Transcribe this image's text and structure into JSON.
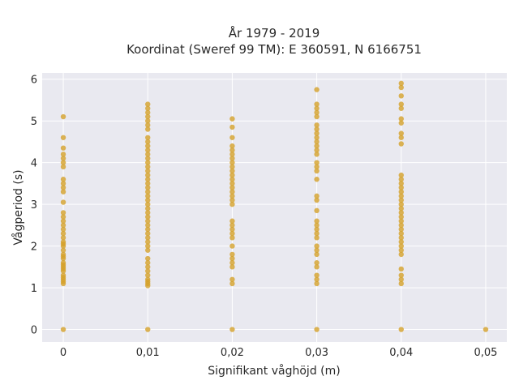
{
  "chart_data": {
    "type": "scatter",
    "title_line1": "År 1979 - 2019",
    "title_line2": "Koordinat (Sweref 99 TM): E 360591, N 6166751",
    "xlabel": "Signifikant våghöjd (m)",
    "ylabel": "Vågperiod (s)",
    "xlim": [
      -0.0025,
      0.0525
    ],
    "ylim": [
      -0.3,
      6.15
    ],
    "xticks": [
      0,
      0.01,
      0.02,
      0.03,
      0.04,
      0.05
    ],
    "xtick_labels": [
      "0",
      "0,01",
      "0,02",
      "0,03",
      "0,04",
      "0,05"
    ],
    "yticks": [
      0,
      1,
      2,
      3,
      4,
      5,
      6
    ],
    "ytick_labels": [
      "0",
      "1",
      "2",
      "3",
      "4",
      "5",
      "6"
    ],
    "grid": true,
    "background": "#e9e9f0",
    "point_color": "#d4a12a",
    "series": [
      {
        "points": [
          [
            0,
            0
          ],
          [
            0,
            1.1
          ],
          [
            0,
            1.15
          ],
          [
            0,
            1.2
          ],
          [
            0,
            1.25
          ],
          [
            0,
            1.3
          ],
          [
            0,
            1.4
          ],
          [
            0,
            1.45
          ],
          [
            0,
            1.5
          ],
          [
            0,
            1.55
          ],
          [
            0,
            1.6
          ],
          [
            0,
            1.7
          ],
          [
            0,
            1.75
          ],
          [
            0,
            1.8
          ],
          [
            0,
            1.9
          ],
          [
            0,
            2.0
          ],
          [
            0,
            2.05
          ],
          [
            0,
            2.1
          ],
          [
            0,
            2.2
          ],
          [
            0,
            2.3
          ],
          [
            0,
            2.4
          ],
          [
            0,
            2.5
          ],
          [
            0,
            2.6
          ],
          [
            0,
            2.7
          ],
          [
            0,
            2.8
          ],
          [
            0,
            3.05
          ],
          [
            0,
            3.3
          ],
          [
            0,
            3.4
          ],
          [
            0,
            3.5
          ],
          [
            0,
            3.6
          ],
          [
            0,
            3.9
          ],
          [
            0,
            4.0
          ],
          [
            0,
            4.1
          ],
          [
            0,
            4.2
          ],
          [
            0,
            4.35
          ],
          [
            0,
            4.6
          ],
          [
            0,
            5.1
          ],
          [
            0.01,
            0
          ],
          [
            0.01,
            1.05
          ],
          [
            0.01,
            1.1
          ],
          [
            0.01,
            1.15
          ],
          [
            0.01,
            1.2
          ],
          [
            0.01,
            1.3
          ],
          [
            0.01,
            1.4
          ],
          [
            0.01,
            1.5
          ],
          [
            0.01,
            1.6
          ],
          [
            0.01,
            1.7
          ],
          [
            0.01,
            1.9
          ],
          [
            0.01,
            2.0
          ],
          [
            0.01,
            2.1
          ],
          [
            0.01,
            2.2
          ],
          [
            0.01,
            2.3
          ],
          [
            0.01,
            2.4
          ],
          [
            0.01,
            2.5
          ],
          [
            0.01,
            2.6
          ],
          [
            0.01,
            2.7
          ],
          [
            0.01,
            2.8
          ],
          [
            0.01,
            2.9
          ],
          [
            0.01,
            3.0
          ],
          [
            0.01,
            3.1
          ],
          [
            0.01,
            3.2
          ],
          [
            0.01,
            3.3
          ],
          [
            0.01,
            3.4
          ],
          [
            0.01,
            3.5
          ],
          [
            0.01,
            3.6
          ],
          [
            0.01,
            3.7
          ],
          [
            0.01,
            3.8
          ],
          [
            0.01,
            3.9
          ],
          [
            0.01,
            4.0
          ],
          [
            0.01,
            4.1
          ],
          [
            0.01,
            4.2
          ],
          [
            0.01,
            4.3
          ],
          [
            0.01,
            4.4
          ],
          [
            0.01,
            4.5
          ],
          [
            0.01,
            4.6
          ],
          [
            0.01,
            4.8
          ],
          [
            0.01,
            4.9
          ],
          [
            0.01,
            5.0
          ],
          [
            0.01,
            5.1
          ],
          [
            0.01,
            5.2
          ],
          [
            0.01,
            5.3
          ],
          [
            0.01,
            5.4
          ],
          [
            0.02,
            0
          ],
          [
            0.02,
            1.1
          ],
          [
            0.02,
            1.2
          ],
          [
            0.02,
            1.5
          ],
          [
            0.02,
            1.6
          ],
          [
            0.02,
            1.7
          ],
          [
            0.02,
            1.8
          ],
          [
            0.02,
            2.0
          ],
          [
            0.02,
            2.2
          ],
          [
            0.02,
            2.3
          ],
          [
            0.02,
            2.4
          ],
          [
            0.02,
            2.5
          ],
          [
            0.02,
            2.6
          ],
          [
            0.02,
            3.0
          ],
          [
            0.02,
            3.1
          ],
          [
            0.02,
            3.2
          ],
          [
            0.02,
            3.3
          ],
          [
            0.02,
            3.4
          ],
          [
            0.02,
            3.5
          ],
          [
            0.02,
            3.6
          ],
          [
            0.02,
            3.7
          ],
          [
            0.02,
            3.8
          ],
          [
            0.02,
            3.9
          ],
          [
            0.02,
            4.0
          ],
          [
            0.02,
            4.1
          ],
          [
            0.02,
            4.2
          ],
          [
            0.02,
            4.3
          ],
          [
            0.02,
            4.4
          ],
          [
            0.02,
            4.6
          ],
          [
            0.02,
            4.85
          ],
          [
            0.02,
            5.05
          ],
          [
            0.03,
            0
          ],
          [
            0.03,
            1.1
          ],
          [
            0.03,
            1.2
          ],
          [
            0.03,
            1.3
          ],
          [
            0.03,
            1.5
          ],
          [
            0.03,
            1.6
          ],
          [
            0.03,
            1.8
          ],
          [
            0.03,
            1.9
          ],
          [
            0.03,
            2.0
          ],
          [
            0.03,
            2.2
          ],
          [
            0.03,
            2.3
          ],
          [
            0.03,
            2.4
          ],
          [
            0.03,
            2.5
          ],
          [
            0.03,
            2.6
          ],
          [
            0.03,
            2.85
          ],
          [
            0.03,
            3.1
          ],
          [
            0.03,
            3.2
          ],
          [
            0.03,
            3.6
          ],
          [
            0.03,
            3.8
          ],
          [
            0.03,
            3.9
          ],
          [
            0.03,
            4.0
          ],
          [
            0.03,
            4.2
          ],
          [
            0.03,
            4.3
          ],
          [
            0.03,
            4.4
          ],
          [
            0.03,
            4.5
          ],
          [
            0.03,
            4.6
          ],
          [
            0.03,
            4.7
          ],
          [
            0.03,
            4.8
          ],
          [
            0.03,
            4.9
          ],
          [
            0.03,
            5.1
          ],
          [
            0.03,
            5.2
          ],
          [
            0.03,
            5.3
          ],
          [
            0.03,
            5.4
          ],
          [
            0.03,
            5.75
          ],
          [
            0.04,
            0
          ],
          [
            0.04,
            1.1
          ],
          [
            0.04,
            1.2
          ],
          [
            0.04,
            1.3
          ],
          [
            0.04,
            1.45
          ],
          [
            0.04,
            1.8
          ],
          [
            0.04,
            1.9
          ],
          [
            0.04,
            2.0
          ],
          [
            0.04,
            2.1
          ],
          [
            0.04,
            2.2
          ],
          [
            0.04,
            2.3
          ],
          [
            0.04,
            2.4
          ],
          [
            0.04,
            2.5
          ],
          [
            0.04,
            2.6
          ],
          [
            0.04,
            2.7
          ],
          [
            0.04,
            2.8
          ],
          [
            0.04,
            2.9
          ],
          [
            0.04,
            3.0
          ],
          [
            0.04,
            3.1
          ],
          [
            0.04,
            3.2
          ],
          [
            0.04,
            3.3
          ],
          [
            0.04,
            3.4
          ],
          [
            0.04,
            3.5
          ],
          [
            0.04,
            3.6
          ],
          [
            0.04,
            3.7
          ],
          [
            0.04,
            4.45
          ],
          [
            0.04,
            4.6
          ],
          [
            0.04,
            4.7
          ],
          [
            0.04,
            4.95
          ],
          [
            0.04,
            5.05
          ],
          [
            0.04,
            5.3
          ],
          [
            0.04,
            5.4
          ],
          [
            0.04,
            5.6
          ],
          [
            0.04,
            5.8
          ],
          [
            0.04,
            5.9
          ],
          [
            0.05,
            0
          ]
        ]
      }
    ]
  }
}
